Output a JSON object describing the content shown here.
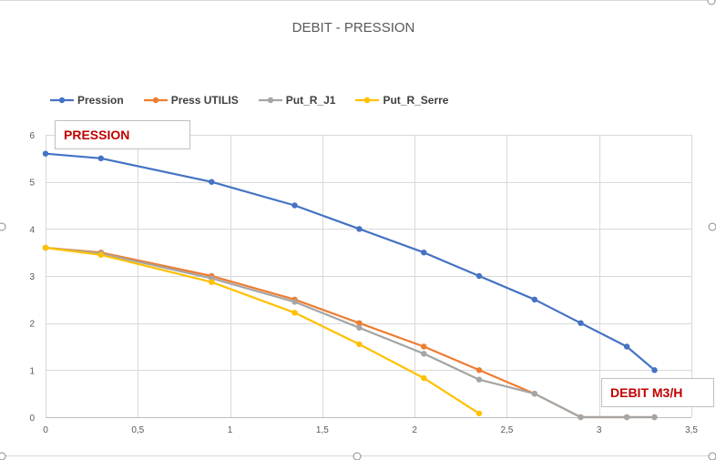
{
  "chart_data": {
    "type": "line",
    "title": "DEBIT - PRESSION",
    "xlabel": "DEBIT M3/H",
    "ylabel": "PRESSION",
    "xlim": [
      0,
      3.5
    ],
    "ylim": [
      0,
      6
    ],
    "x_ticks": [
      "0",
      "0,5",
      "1",
      "1,5",
      "2",
      "2,5",
      "3",
      "3,5"
    ],
    "y_ticks": [
      "0",
      "1",
      "2",
      "3",
      "4",
      "5",
      "6"
    ],
    "grid": true,
    "legend_position": "top-left",
    "series": [
      {
        "name": "Pression",
        "color": "#4472c4",
        "points": [
          [
            0,
            5.6
          ],
          [
            0.3,
            5.5
          ],
          [
            0.9,
            5.0
          ],
          [
            1.35,
            4.5
          ],
          [
            1.7,
            4.0
          ],
          [
            2.05,
            3.5
          ],
          [
            2.35,
            3.0
          ],
          [
            2.65,
            2.5
          ],
          [
            2.9,
            2.0
          ],
          [
            3.15,
            1.5
          ],
          [
            3.3,
            1.0
          ]
        ]
      },
      {
        "name": "Press UTILIS",
        "color": "#ed7d31",
        "points": [
          [
            0,
            3.6
          ],
          [
            0.3,
            3.5
          ],
          [
            0.9,
            3.0
          ],
          [
            1.35,
            2.5
          ],
          [
            1.7,
            2.0
          ],
          [
            2.05,
            1.5
          ],
          [
            2.35,
            1.0
          ],
          [
            2.65,
            0.5
          ],
          [
            2.9,
            0.0
          ],
          [
            3.15,
            0.0
          ],
          [
            3.3,
            0.0
          ]
        ]
      },
      {
        "name": "Put_R_J1",
        "color": "#a5a5a5",
        "points": [
          [
            0,
            3.6
          ],
          [
            0.3,
            3.48
          ],
          [
            0.9,
            2.95
          ],
          [
            1.35,
            2.45
          ],
          [
            1.7,
            1.9
          ],
          [
            2.05,
            1.35
          ],
          [
            2.35,
            0.8
          ],
          [
            2.65,
            0.5
          ],
          [
            2.9,
            0.0
          ],
          [
            3.15,
            0.0
          ],
          [
            3.3,
            0.0
          ]
        ]
      },
      {
        "name": "Put_R_Serre",
        "color": "#ffc000",
        "points": [
          [
            0,
            3.6
          ],
          [
            0.3,
            3.45
          ],
          [
            0.9,
            2.87
          ],
          [
            1.35,
            2.22
          ],
          [
            1.7,
            1.55
          ],
          [
            2.05,
            0.83
          ],
          [
            2.35,
            0.08
          ]
        ]
      }
    ]
  }
}
